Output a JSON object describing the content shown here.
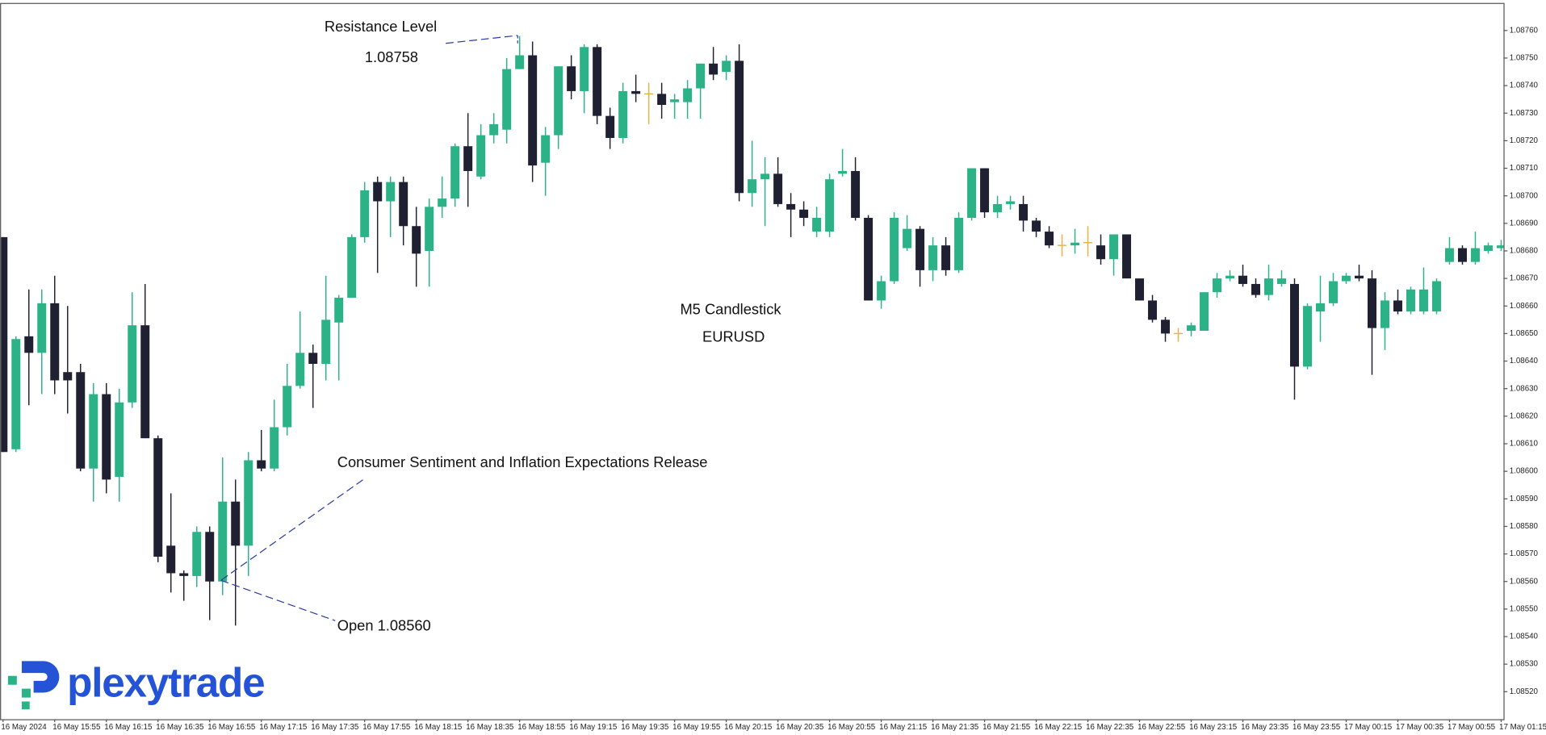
{
  "chart_data": {
    "type": "candlestick",
    "logo": "plexytrade",
    "annotations": [
      "Resistance Level",
      "1.08758",
      "M5 Candlestick",
      "EURUSD",
      "Consumer Sentiment and Inflation Expectations Release",
      "Open 1.08560"
    ],
    "colors": {
      "up": "#2bb387",
      "down": "#1f2133",
      "doji": "#e6b04a"
    },
    "grid": false,
    "ylim": [
      1.0851,
      1.0877
    ],
    "yticks": [
      {
        "value": 1.0852,
        "label": "1.08520"
      },
      {
        "value": 1.0853,
        "label": "1.08530"
      },
      {
        "value": 1.0854,
        "label": "1.08540"
      },
      {
        "value": 1.0855,
        "label": "1.08550"
      },
      {
        "value": 1.0856,
        "label": "1.08560"
      },
      {
        "value": 1.0857,
        "label": "1.08570"
      },
      {
        "value": 1.0858,
        "label": "1.08580"
      },
      {
        "value": 1.0859,
        "label": "1.08590"
      },
      {
        "value": 1.086,
        "label": "1.08600"
      },
      {
        "value": 1.0861,
        "label": "1.08610"
      },
      {
        "value": 1.0862,
        "label": "1.08620"
      },
      {
        "value": 1.0863,
        "label": "1.08630"
      },
      {
        "value": 1.0864,
        "label": "1.08640"
      },
      {
        "value": 1.0865,
        "label": "1.08650"
      },
      {
        "value": 1.0866,
        "label": "1.08660"
      },
      {
        "value": 1.0867,
        "label": "1.08670"
      },
      {
        "value": 1.0868,
        "label": "1.08680"
      },
      {
        "value": 1.0869,
        "label": "1.08690"
      },
      {
        "value": 1.087,
        "label": "1.08700"
      },
      {
        "value": 1.0871,
        "label": "1.08710"
      },
      {
        "value": 1.0872,
        "label": "1.08720"
      },
      {
        "value": 1.0873,
        "label": "1.08730"
      },
      {
        "value": 1.0874,
        "label": "1.08740"
      },
      {
        "value": 1.0875,
        "label": "1.08750"
      },
      {
        "value": 1.0876,
        "label": "1.08760"
      }
    ],
    "categories": [
      "16 May 2024",
      null,
      null,
      null,
      "16 May 15:55",
      null,
      null,
      null,
      "16 May 16:15",
      null,
      null,
      null,
      "16 May 16:35",
      null,
      null,
      null,
      "16 May 16:55",
      null,
      null,
      null,
      "16 May 17:15",
      null,
      null,
      null,
      "16 May 17:35",
      null,
      null,
      null,
      "16 May 17:55",
      null,
      null,
      null,
      "16 May 18:15",
      null,
      null,
      null,
      "16 May 18:35",
      null,
      null,
      null,
      "16 May 18:55",
      null,
      null,
      null,
      "16 May 19:15",
      null,
      null,
      null,
      "16 May 19:35",
      null,
      null,
      null,
      "16 May 19:55",
      null,
      null,
      null,
      "16 May 20:15",
      null,
      null,
      null,
      "16 May 20:35",
      null,
      null,
      null,
      "16 May 20:55",
      null,
      null,
      null,
      "16 May 21:15",
      null,
      null,
      null,
      "16 May 21:35",
      null,
      null,
      null,
      "16 May 21:55",
      null,
      null,
      null,
      "16 May 22:15",
      null,
      null,
      null,
      "16 May 22:35",
      null,
      null,
      null,
      "16 May 22:55",
      null,
      null,
      null,
      "16 May 23:15",
      null,
      null,
      null,
      "16 May 23:35",
      null,
      null,
      null,
      "16 May 23:55",
      null,
      null,
      null,
      "17 May 00:15",
      null,
      null,
      null,
      "17 May 00:35",
      null,
      null,
      null,
      "17 May 00:55",
      null,
      null,
      null,
      "17 May 01:15"
    ],
    "open": [
      1.08685,
      1.08608,
      1.08649,
      1.08643,
      1.08661,
      1.08636,
      1.08636,
      1.08601,
      1.08628,
      1.08598,
      1.08625,
      1.08653,
      1.08612,
      1.08573,
      1.08563,
      1.08562,
      1.08578,
      1.0856,
      1.08589,
      1.08573,
      1.08604,
      1.08601,
      1.08616,
      1.08631,
      1.08643,
      1.08639,
      1.08654,
      1.08663,
      1.08685,
      1.08705,
      1.08698,
      1.08705,
      1.08689,
      1.0868,
      1.08696,
      1.08699,
      1.08718,
      1.08707,
      1.08722,
      1.08724,
      1.08746,
      1.08751,
      1.08712,
      1.08722,
      1.08747,
      1.08738,
      1.08754,
      1.08729,
      1.08721,
      1.08738,
      1.08737,
      1.08737,
      1.08734,
      1.08734,
      1.08739,
      1.08748,
      1.08745,
      1.08749,
      1.08701,
      1.08706,
      1.08708,
      1.08697,
      1.08695,
      1.08687,
      1.08687,
      1.08708,
      1.08709,
      1.08692,
      1.08662,
      1.08669,
      1.08681,
      1.08688,
      1.08673,
      1.08682,
      1.08673,
      1.08692,
      1.0871,
      1.08694,
      1.08697,
      1.08697,
      1.08691,
      1.08687,
      1.08682,
      1.08682,
      1.08683,
      1.08682,
      1.08677,
      1.08686,
      1.0867,
      1.08662,
      1.08655,
      1.0865,
      1.08651,
      1.08651,
      1.08665,
      1.0867,
      1.08671,
      1.08668,
      1.08664,
      1.08668,
      1.08668,
      1.08638,
      1.08658,
      1.08661,
      1.08669,
      1.08671,
      1.0867,
      1.08652,
      1.08662,
      1.08658,
      1.08658,
      1.08658,
      1.08676,
      1.08681,
      1.08676,
      1.0868,
      1.08681
    ],
    "high": [
      1.08685,
      1.08649,
      1.08666,
      1.08666,
      1.08671,
      1.0866,
      1.08639,
      1.08632,
      1.08632,
      1.0863,
      1.08665,
      1.08668,
      1.08613,
      1.08592,
      1.08564,
      1.0858,
      1.0858,
      1.08605,
      1.08597,
      1.08607,
      1.08615,
      1.08626,
      1.08639,
      1.08658,
      1.08646,
      1.08671,
      1.08664,
      1.08686,
      1.08705,
      1.08707,
      1.08707,
      1.08707,
      1.08696,
      1.08699,
      1.08707,
      1.08719,
      1.0873,
      1.08726,
      1.0873,
      1.0875,
      1.08758,
      1.08756,
      1.08725,
      1.08747,
      1.08751,
      1.08755,
      1.08755,
      1.08732,
      1.08741,
      1.08744,
      1.08741,
      1.08741,
      1.08737,
      1.08742,
      1.08748,
      1.08754,
      1.08751,
      1.08755,
      1.0872,
      1.08714,
      1.08714,
      1.08701,
      1.08698,
      1.08696,
      1.08708,
      1.08717,
      1.08714,
      1.08693,
      1.08671,
      1.08694,
      1.08693,
      1.08689,
      1.08685,
      1.08685,
      1.08694,
      1.0871,
      1.0871,
      1.087,
      1.087,
      1.087,
      1.08692,
      1.08689,
      1.08686,
      1.08688,
      1.08689,
      1.08686,
      1.08686,
      1.08686,
      1.0867,
      1.08664,
      1.08656,
      1.08652,
      1.08654,
      1.08665,
      1.08672,
      1.08673,
      1.08675,
      1.0867,
      1.08675,
      1.08673,
      1.0867,
      1.08661,
      1.08671,
      1.08672,
      1.08672,
      1.08675,
      1.08673,
      1.08665,
      1.08666,
      1.08667,
      1.08674,
      1.0867,
      1.08685,
      1.08682,
      1.08687,
      1.08683,
      1.08684
    ],
    "low": [
      1.08607,
      1.08607,
      1.08624,
      1.08628,
      1.08628,
      1.08621,
      1.086,
      1.08589,
      1.08592,
      1.08589,
      1.08623,
      1.08612,
      1.08567,
      1.08556,
      1.08553,
      1.08558,
      1.08546,
      1.08555,
      1.08544,
      1.08562,
      1.086,
      1.086,
      1.08613,
      1.0863,
      1.08623,
      1.08633,
      1.08633,
      1.08663,
      1.08683,
      1.08672,
      1.08685,
      1.08682,
      1.08667,
      1.08667,
      1.08692,
      1.08696,
      1.08696,
      1.08706,
      1.08719,
      1.08719,
      1.08746,
      1.08705,
      1.087,
      1.08717,
      1.08735,
      1.0873,
      1.08726,
      1.08717,
      1.08719,
      1.08734,
      1.08726,
      1.08728,
      1.08728,
      1.08728,
      1.08728,
      1.08742,
      1.08742,
      1.08698,
      1.08696,
      1.08689,
      1.08696,
      1.08685,
      1.08689,
      1.08685,
      1.08685,
      1.08707,
      1.08691,
      1.08662,
      1.08659,
      1.08668,
      1.0868,
      1.08667,
      1.08669,
      1.08671,
      1.08672,
      1.08691,
      1.08692,
      1.08692,
      1.08695,
      1.08687,
      1.08685,
      1.08681,
      1.08678,
      1.08679,
      1.08678,
      1.08675,
      1.08671,
      1.0867,
      1.08662,
      1.08654,
      1.08647,
      1.08647,
      1.08649,
      1.08651,
      1.08663,
      1.08669,
      1.08667,
      1.08663,
      1.08662,
      1.08667,
      1.08626,
      1.08637,
      1.08647,
      1.0866,
      1.08668,
      1.08669,
      1.08635,
      1.08644,
      1.08657,
      1.08657,
      1.08657,
      1.08657,
      1.08675,
      1.08675,
      1.08675,
      1.08679,
      1.0868
    ],
    "close": [
      1.08607,
      1.08648,
      1.08643,
      1.08661,
      1.08633,
      1.08633,
      1.08601,
      1.08628,
      1.08597,
      1.08625,
      1.08653,
      1.08612,
      1.08569,
      1.08563,
      1.08562,
      1.08578,
      1.0856,
      1.08589,
      1.08573,
      1.08604,
      1.08601,
      1.08616,
      1.08631,
      1.08643,
      1.08639,
      1.08655,
      1.08663,
      1.08685,
      1.08702,
      1.08698,
      1.08705,
      1.08689,
      1.08679,
      1.08696,
      1.08699,
      1.08718,
      1.08709,
      1.08722,
      1.08726,
      1.08746,
      1.08751,
      1.08711,
      1.08722,
      1.08747,
      1.08738,
      1.08754,
      1.08729,
      1.08721,
      1.08738,
      1.08737,
      1.08737,
      1.08733,
      1.08735,
      1.08739,
      1.08748,
      1.08744,
      1.08749,
      1.08701,
      1.08706,
      1.08708,
      1.08697,
      1.08695,
      1.08692,
      1.08692,
      1.08706,
      1.08709,
      1.08692,
      1.08662,
      1.08669,
      1.08692,
      1.08688,
      1.08673,
      1.08682,
      1.08673,
      1.08692,
      1.0871,
      1.08694,
      1.08697,
      1.08698,
      1.08691,
      1.08687,
      1.08682,
      1.08682,
      1.08683,
      1.08683,
      1.08677,
      1.08686,
      1.0867,
      1.08662,
      1.08655,
      1.0865,
      1.0865,
      1.08653,
      1.08665,
      1.0867,
      1.08671,
      1.08668,
      1.08664,
      1.0867,
      1.0867,
      1.08638,
      1.0866,
      1.08661,
      1.08669,
      1.08671,
      1.0867,
      1.08652,
      1.08662,
      1.08658,
      1.08666,
      1.08666,
      1.08669,
      1.08681,
      1.08676,
      1.08681,
      1.08682,
      1.08682
    ]
  }
}
